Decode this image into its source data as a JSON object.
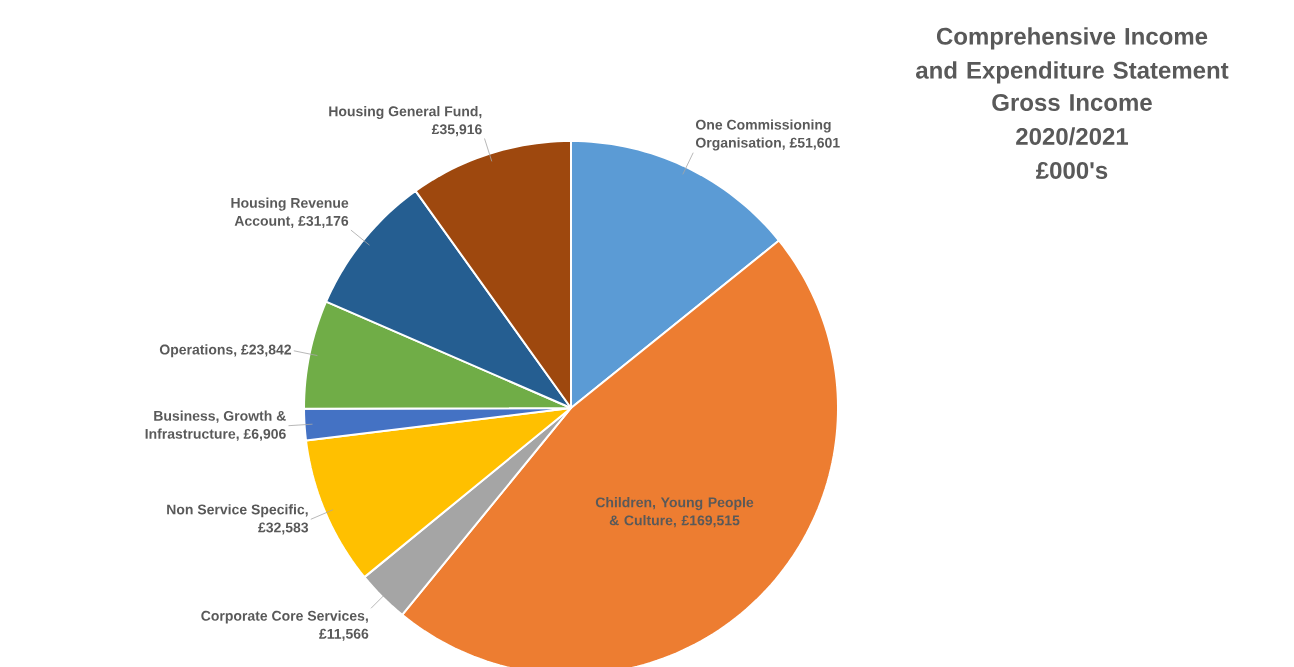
{
  "chart_data": {
    "type": "pie",
    "title": "Comprehensive Income and Expenditure Statement",
    "subtitle": "Gross Income 2020/2021 £000's",
    "categories": [
      "One Commissioning Organisation",
      "Children, Young People & Culture",
      "Corporate Core Services",
      "Non Service Specific",
      "Business, Growth & Infrastructure",
      "Operations",
      "Housing Revenue Account",
      "Housing General Fund"
    ],
    "values": [
      51601,
      169515,
      11566,
      32583,
      6906,
      23842,
      31176,
      35916
    ],
    "value_labels": [
      ", £51,601",
      ", £169,515",
      ", £11,566",
      ", £32,583",
      ", £6,906",
      ", £23,842",
      ", £31,176",
      ", £35,916"
    ],
    "colors": [
      "#5b9bd5",
      "#ed7d31",
      "#a5a5a5",
      "#ffc000",
      "#4472c4",
      "#70ad47",
      "#255e91",
      "#9e480e"
    ]
  }
}
